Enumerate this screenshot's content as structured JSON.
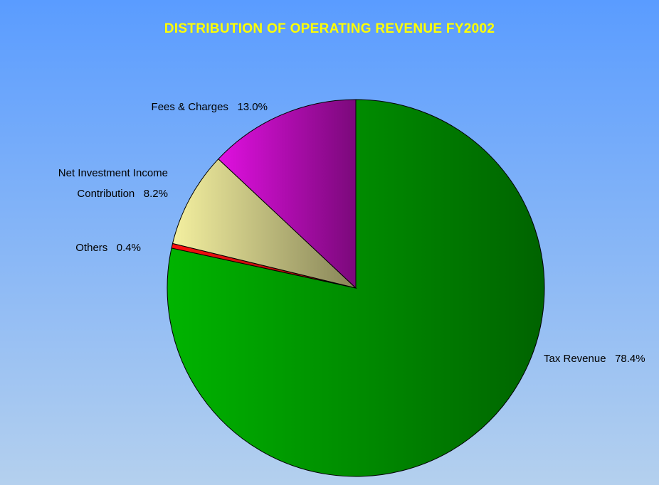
{
  "chart_data": {
    "type": "pie",
    "title": "DISTRIBUTION OF OPERATING REVENUE FY2002",
    "categories": [
      "Tax Revenue",
      "Others",
      "Net Investment Income Contribution",
      "Fees & Charges"
    ],
    "values": [
      78.4,
      0.4,
      8.2,
      13.0
    ],
    "value_labels": [
      "78.4%",
      "0.4%",
      "8.2%",
      "13.0%"
    ],
    "colors": [
      "#00b400",
      "#ff1010",
      "#f4f0a0",
      "#e010e0"
    ]
  }
}
